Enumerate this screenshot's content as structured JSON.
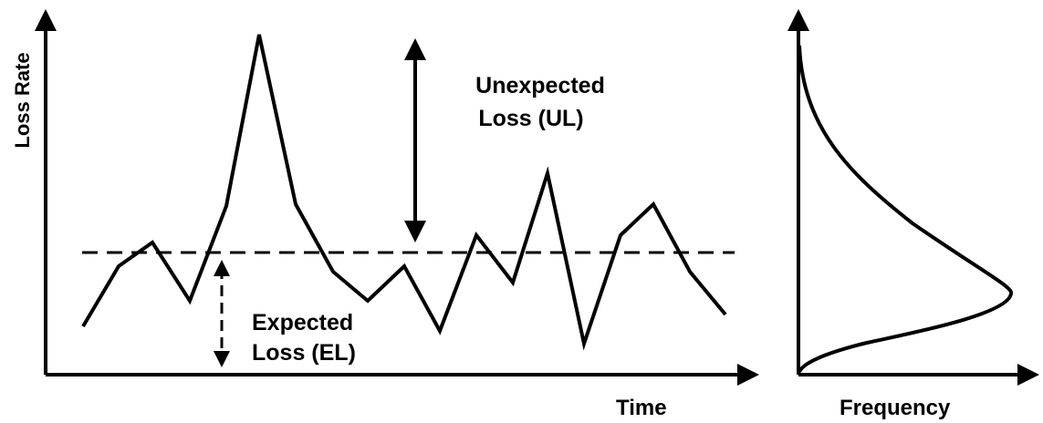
{
  "labels": {
    "y_axis": "Loss Rate",
    "x_axis": "Time",
    "freq_axis": "Frequency",
    "ul_line1": "Unexpected",
    "ul_line2": "Loss (UL)",
    "el_line1": "Expected",
    "el_line2": "Loss (EL)"
  },
  "colors": {
    "ink": "#000000",
    "background": "#ffffff"
  }
}
